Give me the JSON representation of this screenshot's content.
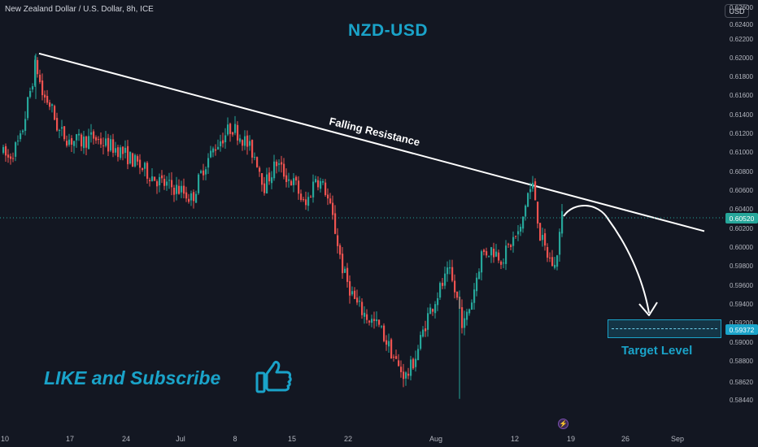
{
  "header": {
    "symbol_title": "New Zealand Dollar / U.S. Dollar, 8h, ICE",
    "currency_button": "USD"
  },
  "overlay": {
    "chart_title": "NZD-USD",
    "resistance_label": "Falling Resistance",
    "like_text": "LIKE and Subscribe",
    "target_label": "Target Level"
  },
  "price_axis": {
    "ticks": [
      "0.62600",
      "0.62400",
      "0.62200",
      "0.62000",
      "0.61800",
      "0.61600",
      "0.61400",
      "0.61200",
      "0.61000",
      "0.60800",
      "0.60600",
      "0.60400",
      "0.60200",
      "0.60000",
      "0.59800",
      "0.59600",
      "0.59400",
      "0.59200",
      "0.59000",
      "0.58800",
      "0.58620",
      "0.58440"
    ],
    "current_price": "0.60520",
    "target_price": "0.59372"
  },
  "time_axis": {
    "ticks": [
      "10",
      "17",
      "24",
      "Jul",
      "8",
      "15",
      "22",
      "Aug",
      "12",
      "19",
      "26",
      "Sep"
    ]
  },
  "colors": {
    "background": "#131722",
    "up_candle": "#26a69a",
    "down_candle": "#ef5350",
    "accent": "#1aa3c9",
    "resistance_line": "#ffffff",
    "current_price_badge": "#26a69a",
    "target_price_badge": "#1aa3c9"
  },
  "icons": {
    "thumbs_up": "thumbs-up-icon",
    "flash": "lightning-icon"
  },
  "chart_data": {
    "type": "candlestick",
    "timeframe": "8h",
    "ylim": [
      0.5844,
      0.626
    ],
    "key_points": [
      {
        "date": "Jun 10",
        "close": 0.6125
      },
      {
        "date": "Jun 13",
        "high": 0.6225,
        "note": "start of resistance line"
      },
      {
        "date": "Jun 24",
        "close": 0.6112
      },
      {
        "date": "Jul 1",
        "close": 0.6085
      },
      {
        "date": "Jul 8",
        "high": 0.6152
      },
      {
        "date": "Jul 15",
        "close": 0.6125
      },
      {
        "date": "Jul 22",
        "close": 0.5995
      },
      {
        "date": "Jul 29",
        "low": 0.5856
      },
      {
        "date": "Aug 5",
        "low": 0.5845,
        "high": 0.5985
      },
      {
        "date": "Aug 12",
        "high": 0.608
      },
      {
        "date": "Aug 16",
        "close": 0.6052
      }
    ],
    "resistance_line": {
      "from": {
        "date": "Jun 13",
        "price": 0.6225
      },
      "to": {
        "date": "Sep 2",
        "price": 0.603
      }
    },
    "projected_path": {
      "from_price": 0.6052,
      "peak_price": 0.6067,
      "to_price": 0.5955
    },
    "current_price": 0.6052,
    "target_level": 0.59372
  }
}
